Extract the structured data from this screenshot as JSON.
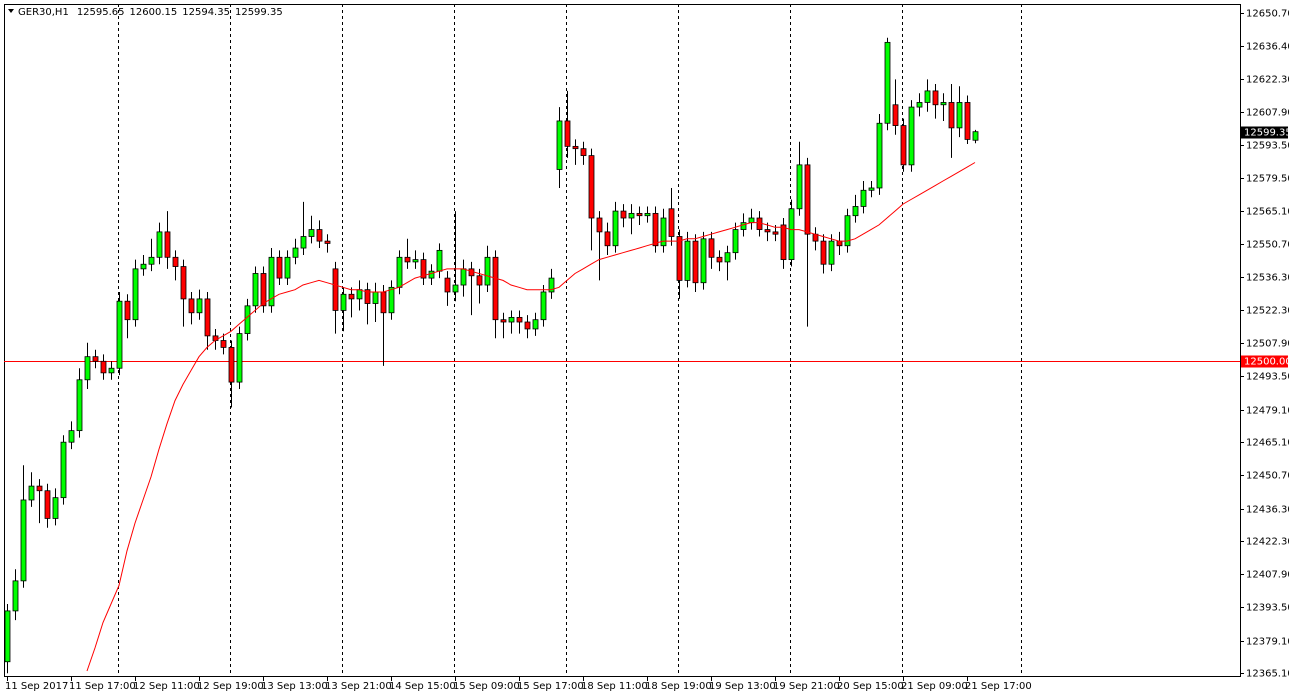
{
  "chart_data": {
    "type": "candlestick",
    "title": "GER30,H1",
    "categories": [
      "11 Sep 2017",
      null,
      null,
      null,
      null,
      null,
      null,
      null,
      "11 Sep 17:00",
      null,
      null,
      null,
      null,
      null,
      null,
      null,
      "12 Sep 11:00",
      null,
      null,
      null,
      null,
      null,
      null,
      null,
      "12 Sep 19:00",
      null,
      null,
      null,
      null,
      null,
      null,
      null,
      "13 Sep 13:00",
      null,
      null,
      null,
      null,
      null,
      null,
      null,
      "13 Sep 21:00",
      null,
      null,
      null,
      null,
      null,
      null,
      null,
      "14 Sep 15:00",
      null,
      null,
      null,
      null,
      null,
      null,
      null,
      "15 Sep 09:00",
      null,
      null,
      null,
      null,
      null,
      null,
      null,
      "15 Sep 17:00",
      null,
      null,
      null,
      null,
      null,
      null,
      null,
      "18 Sep 11:00",
      null,
      null,
      null,
      null,
      null,
      null,
      null,
      "18 Sep 19:00",
      null,
      null,
      null,
      null,
      null,
      null,
      null,
      "19 Sep 13:00",
      null,
      null,
      null,
      null,
      null,
      null,
      null,
      "19 Sep 21:00",
      null,
      null,
      null,
      null,
      null,
      null,
      null,
      "20 Sep 15:00",
      null,
      null,
      null,
      null,
      null,
      null,
      null,
      "21 Sep 09:00",
      null,
      null,
      null,
      null,
      null,
      null,
      null,
      "21 Sep 17:00",
      null
    ],
    "open": [
      12370,
      12392,
      12405,
      12440,
      12446,
      12444,
      12432,
      12441,
      12465,
      12470,
      12492,
      12502,
      12500,
      12495,
      12497,
      12526,
      12518,
      12540,
      12542,
      12545,
      12556,
      12545,
      12541,
      12527,
      12521,
      12527,
      12511,
      12509,
      12506,
      12491,
      12512,
      12524,
      12538,
      12524,
      12545,
      12536,
      12545,
      12549,
      12554,
      12557,
      12552,
      12540,
      12522,
      12529,
      12527,
      12531,
      12525,
      12530,
      12521,
      12532,
      12545,
      12543,
      12544,
      12536,
      12539,
      12536,
      12530,
      12533,
      12540,
      12537,
      12533,
      12545,
      12518,
      12517,
      12519,
      12517,
      12514,
      12518,
      12530,
      12583,
      12604,
      12593,
      12592,
      12589,
      12562,
      12556,
      12550,
      12565,
      12562,
      12564,
      12563,
      12564,
      12550,
      12566,
      12554,
      12535,
      12552,
      12534,
      12553,
      12545,
      12543,
      12547,
      12557,
      12560,
      12562,
      12557,
      12556,
      12559,
      12544,
      12566,
      12585,
      12555,
      12552,
      12542,
      12552,
      12550,
      12563,
      12567,
      12574,
      12575,
      12603,
      12611,
      12602,
      12585,
      12610,
      12612,
      12617,
      12611,
      12612,
      12601,
      12612,
      12595.65
    ],
    "high": [
      12395,
      12410,
      12455,
      12452,
      12449,
      12447,
      12445,
      12468,
      12474,
      12497,
      12508,
      12505,
      12503,
      12500,
      12530,
      12529,
      12544,
      12546,
      12553,
      12560,
      12565,
      12548,
      12544,
      12530,
      12531,
      12530,
      12514,
      12512,
      12509,
      12515,
      12527,
      12541,
      12541,
      12549,
      12548,
      12548,
      12553,
      12569,
      12563,
      12561,
      12555,
      12543,
      12532,
      12532,
      12535,
      12534,
      12534,
      12533,
      12535,
      12548,
      12553,
      12548,
      12547,
      12542,
      12551,
      12539,
      12565,
      12544,
      12543,
      12540,
      12550,
      12548,
      12521,
      12522,
      12522,
      12520,
      12521,
      12533,
      12540,
      12610,
      12617,
      12596,
      12595,
      12592,
      12565,
      12560,
      12569,
      12568,
      12568,
      12567,
      12567,
      12567,
      12566,
      12575,
      12557,
      12556,
      12555,
      12556,
      12556,
      12548,
      12550,
      12560,
      12564,
      12566,
      12565,
      12560,
      12559,
      12562,
      12570,
      12595,
      12588,
      12558,
      12555,
      12555,
      12556,
      12566,
      12572,
      12578,
      12578,
      12607,
      12640,
      12622,
      12605,
      12613,
      12616,
      12622,
      12620,
      12616,
      12620,
      12619,
      12615,
      12600.15
    ],
    "low": [
      12365,
      12388,
      12402,
      12437,
      12430,
      12428,
      12429,
      12438,
      12462,
      12467,
      12488,
      12497,
      12492,
      12492,
      12494,
      12510,
      12515,
      12537,
      12539,
      12542,
      12540,
      12535,
      12515,
      12516,
      12518,
      12505,
      12505,
      12503,
      12480,
      12488,
      12509,
      12521,
      12521,
      12521,
      12533,
      12533,
      12542,
      12546,
      12551,
      12549,
      12547,
      12512,
      12513,
      12519,
      12522,
      12516,
      12517,
      12498,
      12518,
      12529,
      12540,
      12540,
      12533,
      12533,
      12536,
      12524,
      12526,
      12528,
      12520,
      12525,
      12530,
      12510,
      12510,
      12512,
      12512,
      12510,
      12511,
      12515,
      12527,
      12575,
      12588,
      12585,
      12585,
      12548,
      12535,
      12546,
      12547,
      12558,
      12555,
      12559,
      12560,
      12547,
      12547,
      12550,
      12527,
      12532,
      12530,
      12531,
      12540,
      12539,
      12535,
      12544,
      12554,
      12557,
      12554,
      12552,
      12552,
      12540,
      12541,
      12563,
      12515,
      12548,
      12538,
      12539,
      12546,
      12547,
      12560,
      12564,
      12571,
      12572,
      12600,
      12598,
      12582,
      12582,
      12606,
      12608,
      12605,
      12604,
      12588,
      12597,
      12594,
      12594.35
    ],
    "close": [
      12392,
      12405,
      12440,
      12446,
      12444,
      12432,
      12441,
      12465,
      12470,
      12492,
      12502,
      12500,
      12495,
      12497,
      12526,
      12518,
      12540,
      12542,
      12545,
      12556,
      12545,
      12541,
      12527,
      12521,
      12527,
      12511,
      12509,
      12506,
      12491,
      12512,
      12524,
      12538,
      12524,
      12545,
      12536,
      12545,
      12549,
      12554,
      12557,
      12552,
      12551,
      12522,
      12529,
      12527,
      12531,
      12525,
      12530,
      12521,
      12532,
      12545,
      12543,
      12544,
      12536,
      12539,
      12548,
      12530,
      12533,
      12540,
      12537,
      12533,
      12545,
      12518,
      12517,
      12519,
      12517,
      12514,
      12518,
      12530,
      12536,
      12604,
      12593,
      12592,
      12589,
      12562,
      12556,
      12550,
      12565,
      12562,
      12564,
      12563,
      12564,
      12550,
      12562,
      12554,
      12535,
      12552,
      12534,
      12553,
      12545,
      12543,
      12547,
      12557,
      12560,
      12562,
      12557,
      12556,
      12555,
      12544,
      12566,
      12585,
      12555,
      12552,
      12542,
      12552,
      12550,
      12563,
      12567,
      12574,
      12575,
      12603,
      12638,
      12602,
      12585,
      12610,
      12612,
      12617,
      12611,
      12612,
      12601,
      12612,
      12596,
      12599.35
    ],
    "ma": [
      null,
      null,
      null,
      null,
      null,
      null,
      null,
      null,
      null,
      null,
      12366,
      12376,
      12387,
      12395,
      12403,
      12418,
      12430,
      12440,
      12450,
      12462,
      12473,
      12483,
      12490,
      12496,
      12502,
      12506,
      12509,
      12511,
      12513,
      12516,
      12519,
      12522,
      12525,
      12527,
      12529,
      12530,
      12531,
      12533,
      12534,
      12535,
      12534,
      12533,
      12532,
      12531,
      12531,
      12530,
      12530,
      12530,
      12531,
      12532,
      12534,
      12536,
      12537,
      12538,
      12539,
      12540,
      12540,
      12540,
      12539,
      12538,
      12537,
      12536,
      12535,
      12533,
      12532,
      12531,
      12531,
      12531,
      12531,
      12532,
      12535,
      12538,
      12540,
      12542,
      12544,
      12545,
      12546,
      12547,
      12548,
      12549,
      12550,
      12551,
      12552,
      12552,
      12552,
      12553,
      12553,
      12554,
      12555,
      12556,
      12557,
      12558,
      12559,
      12560,
      12560,
      12559,
      12558,
      12558,
      12557,
      12557,
      12556,
      12555,
      12554,
      12553,
      12552,
      12552,
      12553,
      12555,
      12557,
      12559,
      12562,
      12565,
      12568,
      12570,
      12572,
      12574,
      12576,
      12578,
      12580,
      12582,
      12584,
      12586
    ],
    "hline": {
      "value": 12500,
      "label": "12500.00"
    },
    "ylim": [
      12363.4,
      12654.6
    ],
    "yticks": [
      {
        "value": 12650.7,
        "label": "12650.70"
      },
      {
        "value": 12636.4,
        "label": "12636.40"
      },
      {
        "value": 12622.3,
        "label": "12622.30"
      },
      {
        "value": 12607.9,
        "label": "12607.90"
      },
      {
        "value": 12593.5,
        "label": "12593.50"
      },
      {
        "value": 12579.5,
        "label": "12579.50"
      },
      {
        "value": 12565.1,
        "label": "12565.10"
      },
      {
        "value": 12550.7,
        "label": "12550.70"
      },
      {
        "value": 12536.3,
        "label": "12536.30"
      },
      {
        "value": 12522.3,
        "label": "12522.30"
      },
      {
        "value": 12507.9,
        "label": "12507.90"
      },
      {
        "value": 12493.5,
        "label": "12493.50"
      },
      {
        "value": 12479.1,
        "label": "12479.10"
      },
      {
        "value": 12465.1,
        "label": "12465.10"
      },
      {
        "value": 12450.7,
        "label": "12450.70"
      },
      {
        "value": 12436.3,
        "label": "12436.30"
      },
      {
        "value": 12422.3,
        "label": "12422.30"
      },
      {
        "value": 12407.9,
        "label": "12407.90"
      },
      {
        "value": 12393.5,
        "label": "12393.50"
      },
      {
        "value": 12379.1,
        "label": "12379.10"
      },
      {
        "value": 12365.1,
        "label": "12365.10"
      }
    ],
    "bull_color": "#00ff00",
    "bear_color": "#ff0000",
    "ma_color": "#ff0000",
    "hline_color": "#ff0000"
  }
}
